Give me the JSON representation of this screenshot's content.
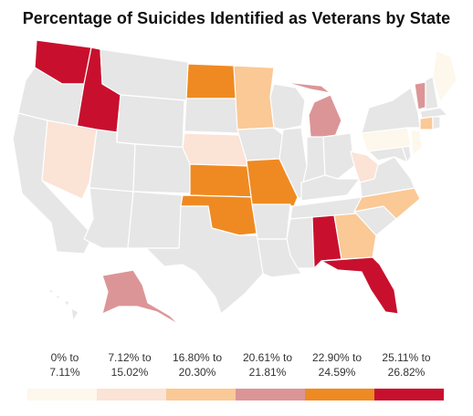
{
  "title": "Percentage of Suicides Identified as Veterans by State",
  "legend": {
    "bins": [
      {
        "line1": "0% to",
        "line2": "7.11%",
        "min": 0,
        "max": 7.11,
        "color": "#fdf7ec"
      },
      {
        "line1": "7.12% to",
        "line2": "15.02%",
        "min": 7.12,
        "max": 15.02,
        "color": "#fbe3d6"
      },
      {
        "line1": "16.80% to",
        "line2": "20.30%",
        "min": 16.8,
        "max": 20.3,
        "color": "#fac995"
      },
      {
        "line1": "20.61% to",
        "line2": "21.81%",
        "min": 20.61,
        "max": 21.81,
        "color": "#dc9597"
      },
      {
        "line1": "22.90% to",
        "line2": "24.59%",
        "min": 22.9,
        "max": 24.59,
        "color": "#ef8a22"
      },
      {
        "line1": "25.11% to",
        "line2": "26.82%",
        "min": 25.11,
        "max": 26.82,
        "color": "#c8102e"
      }
    ]
  },
  "no_data_color": "#e6e6e6",
  "border_color": "#ffffff",
  "states": {
    "WA": "25.11% to 26.82%",
    "ID": "25.11% to 26.82%",
    "AL": "25.11% to 26.82%",
    "FL": "25.11% to 26.82%",
    "ND": "22.90% to 24.59%",
    "KS": "22.90% to 24.59%",
    "MO": "22.90% to 24.59%",
    "OK": "22.90% to 24.59%",
    "AK": "20.61% to 21.81%",
    "MI": "20.61% to 21.81%",
    "VT": "20.61% to 21.81%",
    "MN": "16.80% to 20.30%",
    "GA": "16.80% to 20.30%",
    "NC": "16.80% to 20.30%",
    "CT": "16.80% to 20.30%",
    "NV": "7.12% to 15.02%",
    "NE": "7.12% to 15.02%",
    "WV": "7.12% to 15.02%",
    "PA": "0% to 7.11%",
    "ME": "0% to 7.11%",
    "NJ": "0% to 7.11%"
  }
}
